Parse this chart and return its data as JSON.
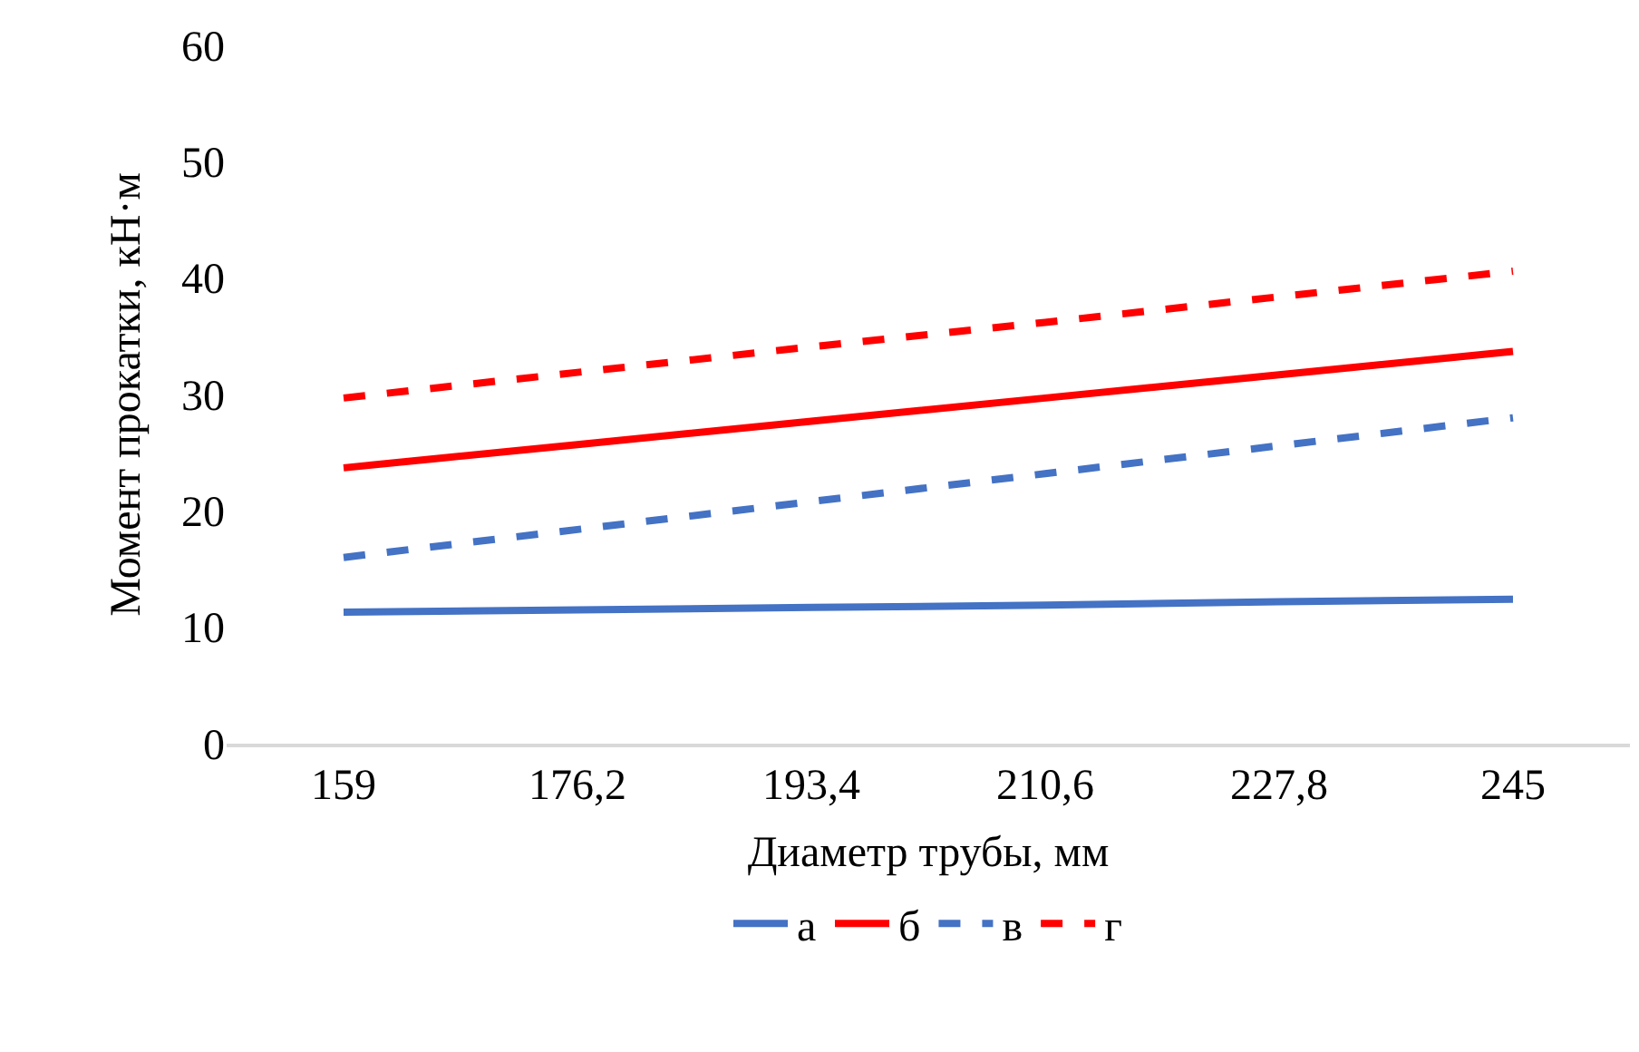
{
  "chart_data": {
    "type": "line",
    "xlabel": "Диаметр трубы, мм",
    "ylabel": "Момент прокатки, кН·м",
    "categories": [
      "159",
      "176,2",
      "193,4",
      "210,6",
      "227,8",
      "245"
    ],
    "series": [
      {
        "name": "а",
        "color": "#4472c4",
        "line_style": "solid",
        "values": [
          11.3,
          11.5,
          11.7,
          11.9,
          12.2,
          12.4
        ]
      },
      {
        "name": "б",
        "color": "#ff0000",
        "line_style": "solid",
        "values": [
          23.7,
          25.7,
          27.7,
          29.7,
          31.7,
          33.7
        ]
      },
      {
        "name": "в",
        "color": "#4472c4",
        "line_style": "dashed",
        "values": [
          16.0,
          18.4,
          20.8,
          23.2,
          25.6,
          28.0
        ]
      },
      {
        "name": "г",
        "color": "#ff0000",
        "line_style": "dashed",
        "values": [
          29.7,
          31.9,
          34.1,
          36.2,
          38.4,
          40.6
        ]
      }
    ],
    "ylim": [
      0,
      60
    ],
    "yticks": [
      0,
      10,
      20,
      30,
      40,
      50,
      60
    ],
    "grid": false,
    "legend": "bottom",
    "marker": "none"
  }
}
